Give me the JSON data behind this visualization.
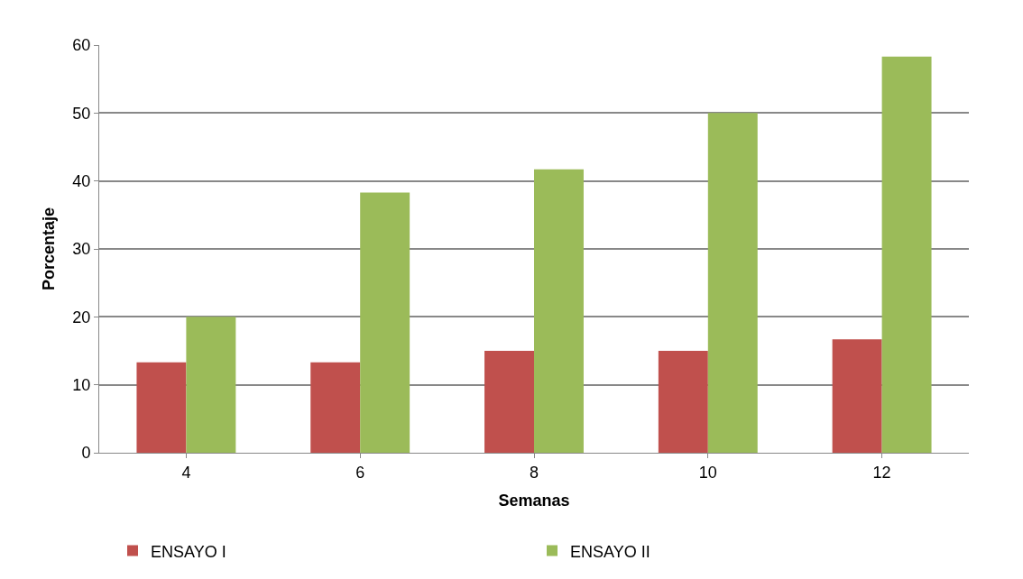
{
  "chart_data": {
    "type": "bar",
    "xlabel": "Semanas",
    "ylabel": "Porcentaje",
    "categories": [
      "4",
      "6",
      "8",
      "10",
      "12"
    ],
    "series": [
      {
        "name": "ENSAYO I",
        "color": "#c0504d",
        "values": [
          13.3,
          13.3,
          15,
          15,
          16.7
        ]
      },
      {
        "name": "ENSAYO II",
        "color": "#9bbb59",
        "values": [
          20,
          38.3,
          41.7,
          50,
          58.3
        ]
      }
    ],
    "ylim": [
      0,
      60
    ],
    "yticks": [
      0,
      10,
      20,
      30,
      40,
      50,
      60
    ],
    "grid": "y",
    "legend": "bottom"
  }
}
